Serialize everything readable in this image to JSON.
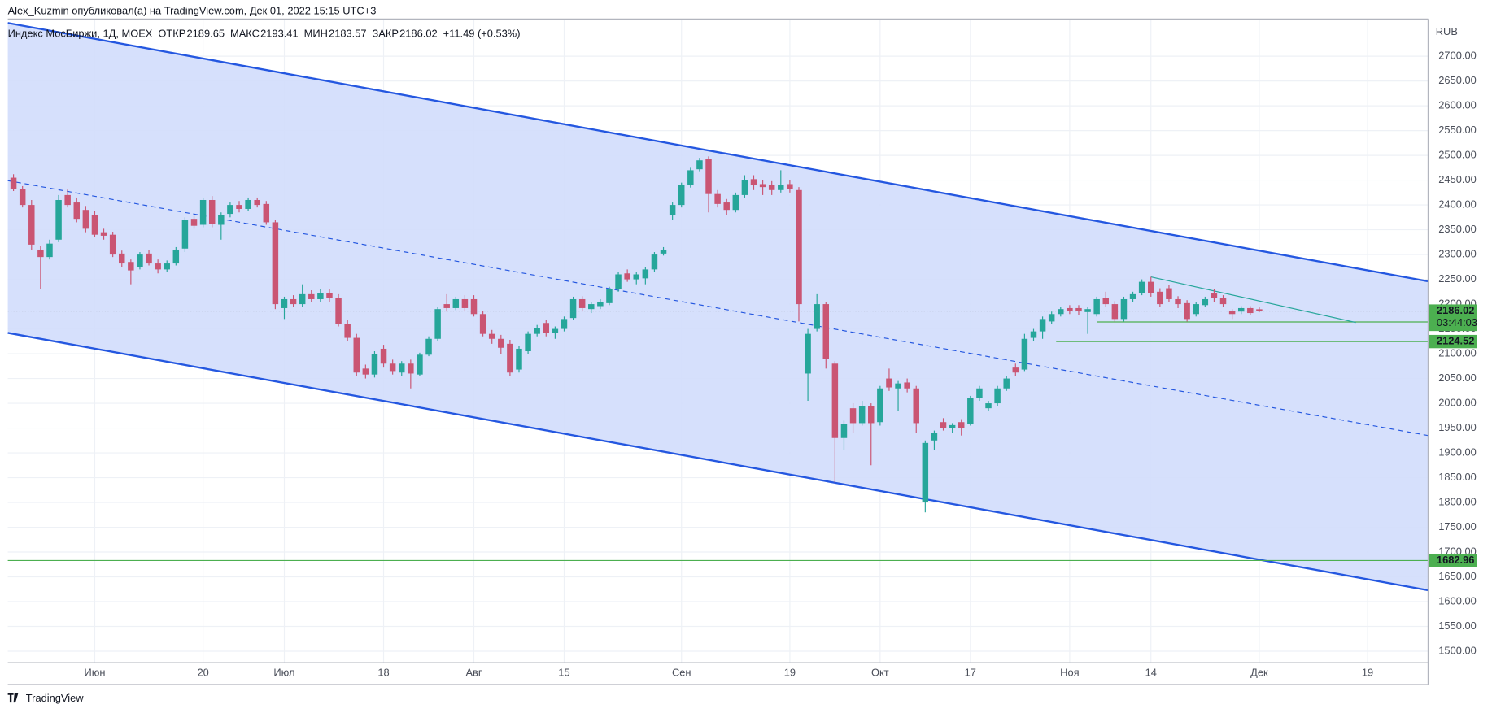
{
  "header": {
    "publisher": "Alex_Kuzmin опубликовал(а) на TradingView.com, Дек 01, 2022 15:15 UTC+3"
  },
  "footer": {
    "brand": "TradingView"
  },
  "chart_data": {
    "type": "candlestick",
    "legend": {
      "symbol": "Индекс МосБиржи, 1Д, MOEX",
      "open_label": "ОТКР",
      "high_label": "МАКС",
      "low_label": "МИН",
      "close_label": "ЗАКР",
      "change": "+11.49 (+0.53%)"
    },
    "y_unit": "RUB",
    "up_color": "#26a69a",
    "down_color": "#ca5573",
    "grid": true,
    "xlim": [
      -0.63,
      156.7
    ],
    "ylim": [
      1477,
      2775
    ],
    "xticks": [
      {
        "value": 9,
        "label": "Июн"
      },
      {
        "value": 21,
        "label": "20"
      },
      {
        "value": 30,
        "label": "Июл"
      },
      {
        "value": 41,
        "label": "18"
      },
      {
        "value": 51,
        "label": "Авг"
      },
      {
        "value": 61,
        "label": "15"
      },
      {
        "value": 74,
        "label": "Сен"
      },
      {
        "value": 86,
        "label": "19"
      },
      {
        "value": 96,
        "label": "Окт"
      },
      {
        "value": 106,
        "label": "17"
      },
      {
        "value": 117,
        "label": "Ноя"
      },
      {
        "value": 126,
        "label": "14"
      },
      {
        "value": 138,
        "label": "Дек"
      },
      {
        "value": 150,
        "label": "19"
      }
    ],
    "yticks": [
      {
        "value": 1500,
        "label": "1500.00"
      },
      {
        "value": 1550,
        "label": "1550.00"
      },
      {
        "value": 1600,
        "label": "1600.00"
      },
      {
        "value": 1650,
        "label": "1650.00"
      },
      {
        "value": 1700,
        "label": "1700.00"
      },
      {
        "value": 1750,
        "label": "1750.00"
      },
      {
        "value": 1800,
        "label": "1800.00"
      },
      {
        "value": 1850,
        "label": "1850.00"
      },
      {
        "value": 1900,
        "label": "1900.00"
      },
      {
        "value": 1950,
        "label": "1950.00"
      },
      {
        "value": 2000,
        "label": "2000.00"
      },
      {
        "value": 2050,
        "label": "2050.00"
      },
      {
        "value": 2100,
        "label": "2100.00"
      },
      {
        "value": 2150,
        "label": "2150.00"
      },
      {
        "value": 2200,
        "label": "2200.00"
      },
      {
        "value": 2250,
        "label": "2250.00"
      },
      {
        "value": 2300,
        "label": "2300.00"
      },
      {
        "value": 2350,
        "label": "2350.00"
      },
      {
        "value": 2400,
        "label": "2400.00"
      },
      {
        "value": 2450,
        "label": "2450.00"
      },
      {
        "value": 2500,
        "label": "2500.00"
      },
      {
        "value": 2550,
        "label": "2550.00"
      },
      {
        "value": 2600,
        "label": "2600.00"
      },
      {
        "value": 2650,
        "label": "2650.00"
      },
      {
        "value": 2700,
        "label": "2700.00"
      }
    ],
    "countdown": "03:44:03",
    "channel": {
      "color": "#2457e0",
      "fill": "#d1ddfc",
      "upper": [
        [
          -0.63,
          2767
        ],
        [
          156.7,
          2246
        ]
      ],
      "lower": [
        [
          -0.63,
          2142
        ],
        [
          156.7,
          1623
        ]
      ],
      "middle": [
        [
          -0.63,
          2449
        ],
        [
          156.7,
          1935
        ]
      ]
    },
    "hlines": [
      {
        "price": 2164.04,
        "from": 120
      },
      {
        "price": 2124.52,
        "from": 115.5
      },
      {
        "price": 1682.96,
        "from": -0.63
      }
    ],
    "hline_color": "#4caf50",
    "trendline": [
      [
        126,
        2255
      ],
      [
        148.7,
        2163
      ]
    ],
    "series": [
      {
        "name": "MOEX",
        "values": [
          [
            2455,
            2462,
            2428,
            2432
          ],
          [
            2432,
            2438,
            2395,
            2400
          ],
          [
            2400,
            2410,
            2310,
            2320
          ],
          [
            2310,
            2318,
            2230,
            2295
          ],
          [
            2295,
            2330,
            2290,
            2322
          ],
          [
            2330,
            2420,
            2325,
            2410
          ],
          [
            2420,
            2432,
            2395,
            2400
          ],
          [
            2405,
            2415,
            2365,
            2372
          ],
          [
            2390,
            2398,
            2345,
            2352
          ],
          [
            2380,
            2388,
            2335,
            2340
          ],
          [
            2345,
            2352,
            2330,
            2338
          ],
          [
            2340,
            2346,
            2295,
            2300
          ],
          [
            2302,
            2308,
            2275,
            2282
          ],
          [
            2285,
            2290,
            2240,
            2268
          ],
          [
            2275,
            2305,
            2270,
            2300
          ],
          [
            2302,
            2310,
            2278,
            2282
          ],
          [
            2282,
            2290,
            2262,
            2270
          ],
          [
            2270,
            2288,
            2265,
            2282
          ],
          [
            2282,
            2315,
            2278,
            2310
          ],
          [
            2312,
            2375,
            2305,
            2370
          ],
          [
            2372,
            2378,
            2352,
            2358
          ],
          [
            2360,
            2415,
            2355,
            2410
          ],
          [
            2410,
            2418,
            2355,
            2362
          ],
          [
            2360,
            2385,
            2330,
            2380
          ],
          [
            2382,
            2405,
            2375,
            2400
          ],
          [
            2400,
            2408,
            2385,
            2392
          ],
          [
            2392,
            2415,
            2388,
            2410
          ],
          [
            2410,
            2415,
            2395,
            2400
          ],
          [
            2402,
            2408,
            2360,
            2365
          ],
          [
            2365,
            2370,
            2190,
            2200
          ],
          [
            2192,
            2215,
            2170,
            2210
          ],
          [
            2210,
            2218,
            2195,
            2200
          ],
          [
            2200,
            2240,
            2195,
            2220
          ],
          [
            2220,
            2228,
            2205,
            2210
          ],
          [
            2210,
            2230,
            2205,
            2222
          ],
          [
            2222,
            2230,
            2205,
            2212
          ],
          [
            2212,
            2220,
            2155,
            2160
          ],
          [
            2160,
            2168,
            2125,
            2132
          ],
          [
            2132,
            2140,
            2055,
            2062
          ],
          [
            2070,
            2078,
            2050,
            2058
          ],
          [
            2058,
            2105,
            2052,
            2100
          ],
          [
            2110,
            2118,
            2072,
            2080
          ],
          [
            2080,
            2088,
            2058,
            2065
          ],
          [
            2062,
            2085,
            2055,
            2080
          ],
          [
            2080,
            2088,
            2030,
            2060
          ],
          [
            2058,
            2102,
            2055,
            2098
          ],
          [
            2098,
            2135,
            2095,
            2130
          ],
          [
            2130,
            2195,
            2125,
            2190
          ],
          [
            2200,
            2220,
            2185,
            2192
          ],
          [
            2192,
            2215,
            2188,
            2210
          ],
          [
            2210,
            2218,
            2185,
            2192
          ],
          [
            2210,
            2218,
            2175,
            2180
          ],
          [
            2180,
            2186,
            2135,
            2140
          ],
          [
            2140,
            2148,
            2120,
            2130
          ],
          [
            2130,
            2138,
            2100,
            2112
          ],
          [
            2120,
            2128,
            2055,
            2062
          ],
          [
            2068,
            2115,
            2062,
            2110
          ],
          [
            2105,
            2145,
            2100,
            2140
          ],
          [
            2140,
            2158,
            2135,
            2152
          ],
          [
            2162,
            2168,
            2135,
            2142
          ],
          [
            2142,
            2155,
            2130,
            2150
          ],
          [
            2150,
            2175,
            2145,
            2170
          ],
          [
            2172,
            2215,
            2168,
            2210
          ],
          [
            2210,
            2216,
            2185,
            2192
          ],
          [
            2190,
            2205,
            2182,
            2200
          ],
          [
            2196,
            2210,
            2190,
            2205
          ],
          [
            2202,
            2235,
            2198,
            2230
          ],
          [
            2230,
            2265,
            2225,
            2260
          ],
          [
            2262,
            2270,
            2245,
            2250
          ],
          [
            2250,
            2265,
            2240,
            2260
          ],
          [
            2252,
            2275,
            2240,
            2270
          ],
          [
            2270,
            2305,
            2265,
            2300
          ],
          [
            2302,
            2315,
            2298,
            2310
          ],
          [
            2380,
            2405,
            2370,
            2400
          ],
          [
            2400,
            2445,
            2395,
            2440
          ],
          [
            2440,
            2475,
            2435,
            2470
          ],
          [
            2472,
            2495,
            2468,
            2490
          ],
          [
            2492,
            2498,
            2385,
            2422
          ],
          [
            2422,
            2430,
            2395,
            2402
          ],
          [
            2405,
            2412,
            2380,
            2390
          ],
          [
            2390,
            2425,
            2385,
            2420
          ],
          [
            2420,
            2460,
            2415,
            2450
          ],
          [
            2452,
            2460,
            2430,
            2440
          ],
          [
            2442,
            2450,
            2420,
            2436
          ],
          [
            2440,
            2448,
            2420,
            2430
          ],
          [
            2430,
            2470,
            2425,
            2440
          ],
          [
            2442,
            2450,
            2425,
            2432
          ],
          [
            2430,
            2436,
            2165,
            2200
          ],
          [
            2060,
            2150,
            2005,
            2140
          ],
          [
            2150,
            2220,
            2145,
            2200
          ],
          [
            2200,
            2205,
            2070,
            2090
          ],
          [
            2080,
            2085,
            1840,
            1930
          ],
          [
            1930,
            1965,
            1905,
            1958
          ],
          [
            1990,
            2000,
            1940,
            1960
          ],
          [
            1960,
            2005,
            1955,
            1995
          ],
          [
            1995,
            2000,
            1875,
            1960
          ],
          [
            1962,
            2035,
            1955,
            2030
          ],
          [
            2050,
            2070,
            2025,
            2032
          ],
          [
            2030,
            2045,
            1985,
            2040
          ],
          [
            2042,
            2050,
            2022,
            2030
          ],
          [
            2030,
            2035,
            1940,
            1960
          ],
          [
            1800,
            1925,
            1780,
            1920
          ],
          [
            1925,
            1945,
            1905,
            1940
          ],
          [
            1962,
            1970,
            1945,
            1950
          ],
          [
            1950,
            1960,
            1940,
            1956
          ],
          [
            1962,
            1968,
            1935,
            1950
          ],
          [
            1958,
            2015,
            1955,
            2010
          ],
          [
            2010,
            2035,
            2005,
            2030
          ],
          [
            1990,
            2005,
            1985,
            2000
          ],
          [
            2000,
            2035,
            1995,
            2030
          ],
          [
            2030,
            2055,
            2025,
            2050
          ],
          [
            2072,
            2080,
            2055,
            2062
          ],
          [
            2068,
            2140,
            2065,
            2130
          ],
          [
            2132,
            2150,
            2125,
            2145
          ],
          [
            2145,
            2175,
            2130,
            2170
          ],
          [
            2165,
            2185,
            2160,
            2180
          ],
          [
            2180,
            2195,
            2175,
            2190
          ],
          [
            2192,
            2198,
            2180,
            2186
          ],
          [
            2192,
            2198,
            2178,
            2186
          ],
          [
            2184,
            2195,
            2140,
            2190
          ],
          [
            2180,
            2215,
            2175,
            2210
          ],
          [
            2212,
            2225,
            2195,
            2200
          ],
          [
            2200,
            2206,
            2165,
            2170
          ],
          [
            2170,
            2215,
            2165,
            2210
          ],
          [
            2210,
            2225,
            2205,
            2220
          ],
          [
            2222,
            2250,
            2218,
            2245
          ],
          [
            2245,
            2255,
            2215,
            2222
          ],
          [
            2225,
            2232,
            2195,
            2200
          ],
          [
            2232,
            2238,
            2205,
            2210
          ],
          [
            2210,
            2216,
            2192,
            2200
          ],
          [
            2202,
            2208,
            2165,
            2170
          ],
          [
            2180,
            2204,
            2175,
            2200
          ],
          [
            2198,
            2215,
            2194,
            2210
          ],
          [
            2222,
            2230,
            2205,
            2212
          ],
          [
            2212,
            2218,
            2195,
            2200
          ],
          [
            2186,
            2190,
            2170,
            2180
          ],
          [
            2185,
            2196,
            2180,
            2192
          ],
          [
            2192,
            2196,
            2178,
            2182
          ],
          [
            2189.65,
            2193.41,
            2183.57,
            2186.02
          ]
        ]
      }
    ]
  }
}
